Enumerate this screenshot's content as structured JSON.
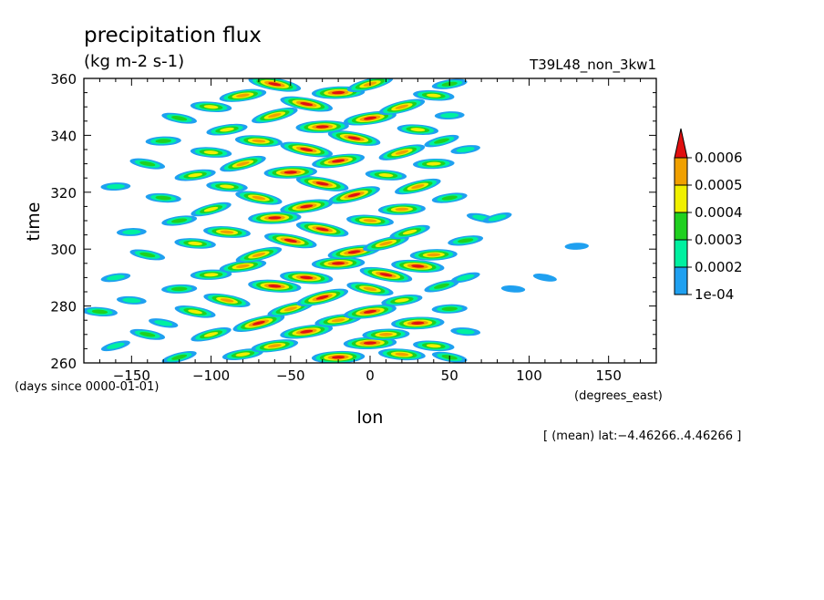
{
  "chart_data": {
    "type": "heatmap",
    "title": "precipitation flux",
    "units": "(kg m-2 s-1)",
    "run_label": "T39L48_non_3kw1",
    "xlabel": "lon",
    "ylabel": "time",
    "x_units_label": "(degrees_east)",
    "y_units_label": "(days since 0000-01-01)",
    "xlim": [
      -180,
      180
    ],
    "ylim": [
      260,
      360
    ],
    "x_ticks": [
      -150,
      -100,
      -50,
      0,
      50,
      100,
      150
    ],
    "x_tick_labels": [
      "−150",
      "−100",
      "−50",
      "0",
      "50",
      "100",
      "150"
    ],
    "y_ticks": [
      260,
      280,
      300,
      320,
      340,
      360
    ],
    "y_tick_labels": [
      "260",
      "280",
      "300",
      "320",
      "340",
      "360"
    ],
    "annotation": "[ (mean) lat:−4.46266..4.46266 ]",
    "colorbar": {
      "levels": [
        0.0001,
        0.0002,
        0.0003,
        0.0004,
        0.0005,
        0.0006
      ],
      "labels": [
        "1e-04",
        "0.0002",
        "0.0003",
        "0.0004",
        "0.0005",
        "0.0006"
      ],
      "colors": [
        "#1fa0f0",
        "#00f0a0",
        "#20d020",
        "#f0f000",
        "#f0a000",
        "#e01010"
      ],
      "extend": "max"
    },
    "features": [
      {
        "lon": -120,
        "time": 262,
        "level": 3
      },
      {
        "lon": -80,
        "time": 263,
        "level": 4
      },
      {
        "lon": -20,
        "time": 262,
        "level": 6
      },
      {
        "lon": 20,
        "time": 263,
        "level": 5
      },
      {
        "lon": 50,
        "time": 262,
        "level": 3
      },
      {
        "lon": -160,
        "time": 266,
        "level": 2
      },
      {
        "lon": -60,
        "time": 266,
        "level": 5
      },
      {
        "lon": 0,
        "time": 267,
        "level": 6
      },
      {
        "lon": 40,
        "time": 266,
        "level": 4
      },
      {
        "lon": -140,
        "time": 270,
        "level": 3
      },
      {
        "lon": -100,
        "time": 270,
        "level": 4
      },
      {
        "lon": -40,
        "time": 271,
        "level": 6
      },
      {
        "lon": 10,
        "time": 270,
        "level": 5
      },
      {
        "lon": 60,
        "time": 271,
        "level": 2
      },
      {
        "lon": -130,
        "time": 274,
        "level": 2
      },
      {
        "lon": -70,
        "time": 274,
        "level": 6
      },
      {
        "lon": -20,
        "time": 275,
        "level": 5
      },
      {
        "lon": 30,
        "time": 274,
        "level": 6
      },
      {
        "lon": -170,
        "time": 278,
        "level": 3
      },
      {
        "lon": -110,
        "time": 278,
        "level": 4
      },
      {
        "lon": -50,
        "time": 279,
        "level": 5
      },
      {
        "lon": 0,
        "time": 278,
        "level": 6
      },
      {
        "lon": 50,
        "time": 279,
        "level": 3
      },
      {
        "lon": -150,
        "time": 282,
        "level": 2
      },
      {
        "lon": -90,
        "time": 282,
        "level": 5
      },
      {
        "lon": -30,
        "time": 283,
        "level": 6
      },
      {
        "lon": 20,
        "time": 282,
        "level": 4
      },
      {
        "lon": -120,
        "time": 286,
        "level": 3
      },
      {
        "lon": -60,
        "time": 287,
        "level": 6
      },
      {
        "lon": 0,
        "time": 286,
        "level": 5
      },
      {
        "lon": 45,
        "time": 287,
        "level": 3
      },
      {
        "lon": -160,
        "time": 290,
        "level": 2
      },
      {
        "lon": -100,
        "time": 291,
        "level": 4
      },
      {
        "lon": -40,
        "time": 290,
        "level": 6
      },
      {
        "lon": 10,
        "time": 291,
        "level": 6
      },
      {
        "lon": 60,
        "time": 290,
        "level": 2
      },
      {
        "lon": -80,
        "time": 294,
        "level": 5
      },
      {
        "lon": -20,
        "time": 295,
        "level": 6
      },
      {
        "lon": 30,
        "time": 294,
        "level": 6
      },
      {
        "lon": -140,
        "time": 298,
        "level": 3
      },
      {
        "lon": -70,
        "time": 298,
        "level": 5
      },
      {
        "lon": -10,
        "time": 299,
        "level": 6
      },
      {
        "lon": 40,
        "time": 298,
        "level": 5
      },
      {
        "lon": -110,
        "time": 302,
        "level": 4
      },
      {
        "lon": -50,
        "time": 303,
        "level": 6
      },
      {
        "lon": 10,
        "time": 302,
        "level": 5
      },
      {
        "lon": 60,
        "time": 303,
        "level": 3
      },
      {
        "lon": -150,
        "time": 306,
        "level": 2
      },
      {
        "lon": -90,
        "time": 306,
        "level": 5
      },
      {
        "lon": -30,
        "time": 307,
        "level": 6
      },
      {
        "lon": 25,
        "time": 306,
        "level": 4
      },
      {
        "lon": -120,
        "time": 310,
        "level": 3
      },
      {
        "lon": -60,
        "time": 311,
        "level": 6
      },
      {
        "lon": 0,
        "time": 310,
        "level": 5
      },
      {
        "lon": 70,
        "time": 311,
        "level": 2
      },
      {
        "lon": -100,
        "time": 314,
        "level": 4
      },
      {
        "lon": -40,
        "time": 315,
        "level": 6
      },
      {
        "lon": 20,
        "time": 314,
        "level": 5
      },
      {
        "lon": -130,
        "time": 318,
        "level": 3
      },
      {
        "lon": -70,
        "time": 318,
        "level": 5
      },
      {
        "lon": -10,
        "time": 319,
        "level": 6
      },
      {
        "lon": 50,
        "time": 318,
        "level": 3
      },
      {
        "lon": -160,
        "time": 322,
        "level": 2
      },
      {
        "lon": -90,
        "time": 322,
        "level": 4
      },
      {
        "lon": -30,
        "time": 323,
        "level": 6
      },
      {
        "lon": 30,
        "time": 322,
        "level": 5
      },
      {
        "lon": -110,
        "time": 326,
        "level": 4
      },
      {
        "lon": -50,
        "time": 327,
        "level": 6
      },
      {
        "lon": 10,
        "time": 326,
        "level": 4
      },
      {
        "lon": -140,
        "time": 330,
        "level": 3
      },
      {
        "lon": -80,
        "time": 330,
        "level": 5
      },
      {
        "lon": -20,
        "time": 331,
        "level": 6
      },
      {
        "lon": 40,
        "time": 330,
        "level": 4
      },
      {
        "lon": -100,
        "time": 334,
        "level": 4
      },
      {
        "lon": -40,
        "time": 335,
        "level": 6
      },
      {
        "lon": 20,
        "time": 334,
        "level": 5
      },
      {
        "lon": 60,
        "time": 335,
        "level": 2
      },
      {
        "lon": -130,
        "time": 338,
        "level": 3
      },
      {
        "lon": -70,
        "time": 338,
        "level": 5
      },
      {
        "lon": -10,
        "time": 339,
        "level": 6
      },
      {
        "lon": 45,
        "time": 338,
        "level": 3
      },
      {
        "lon": -90,
        "time": 342,
        "level": 4
      },
      {
        "lon": -30,
        "time": 343,
        "level": 6
      },
      {
        "lon": 30,
        "time": 342,
        "level": 4
      },
      {
        "lon": -120,
        "time": 346,
        "level": 3
      },
      {
        "lon": -60,
        "time": 347,
        "level": 5
      },
      {
        "lon": 0,
        "time": 346,
        "level": 6
      },
      {
        "lon": 50,
        "time": 347,
        "level": 2
      },
      {
        "lon": -100,
        "time": 350,
        "level": 4
      },
      {
        "lon": -40,
        "time": 351,
        "level": 6
      },
      {
        "lon": 20,
        "time": 350,
        "level": 5
      },
      {
        "lon": -80,
        "time": 354,
        "level": 5
      },
      {
        "lon": -20,
        "time": 355,
        "level": 6
      },
      {
        "lon": 40,
        "time": 354,
        "level": 4
      },
      {
        "lon": -60,
        "time": 358,
        "level": 6
      },
      {
        "lon": 0,
        "time": 358,
        "level": 5
      },
      {
        "lon": 50,
        "time": 358,
        "level": 3
      },
      {
        "lon": 130,
        "time": 301,
        "level": 1
      },
      {
        "lon": 90,
        "time": 286,
        "level": 1
      },
      {
        "lon": 110,
        "time": 290,
        "level": 1
      },
      {
        "lon": 80,
        "time": 311,
        "level": 2
      }
    ]
  }
}
